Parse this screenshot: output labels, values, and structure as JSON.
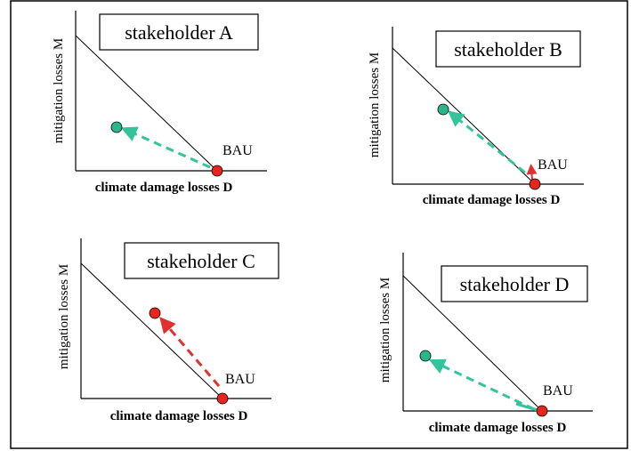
{
  "colors": {
    "frame": "#000000",
    "axis": "#000000",
    "green_marker": "#2bb58a",
    "green_arrow": "#33c49b",
    "red_marker": "#e8251c",
    "red_arrow": "#e03030"
  },
  "icons": {
    "point": "circle-marker",
    "shift": "dashed-arrow"
  },
  "panels": [
    {
      "id": "A",
      "title": "stakeholder A",
      "ylabel": "mitigation losses M",
      "xlabel": "climate damage losses D",
      "origin_label": "BAU",
      "shift_color": "green"
    },
    {
      "id": "B",
      "title": "stakeholder B",
      "ylabel": "mitigation losses M",
      "xlabel": "climate damage losses D",
      "origin_label": "BAU",
      "shift_color": "green"
    },
    {
      "id": "C",
      "title": "stakeholder C",
      "ylabel": "mitigation losses M",
      "xlabel": "climate damage losses D",
      "origin_label": "BAU",
      "shift_color": "red"
    },
    {
      "id": "D",
      "title": "stakeholder D",
      "ylabel": "mitigation losses M",
      "xlabel": "climate damage losses D",
      "origin_label": "BAU",
      "shift_color": "green"
    }
  ]
}
